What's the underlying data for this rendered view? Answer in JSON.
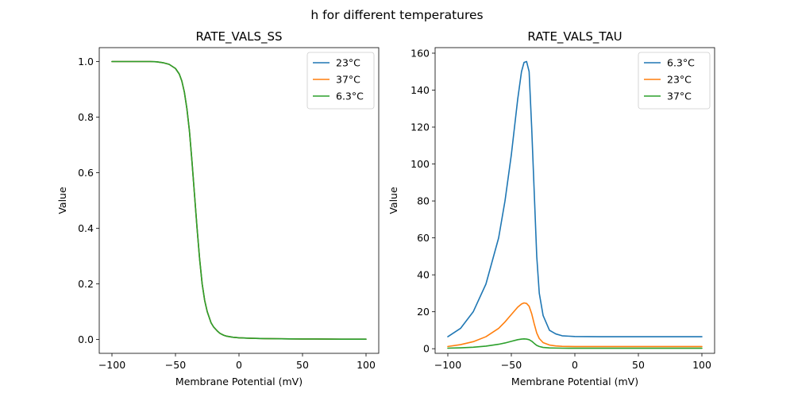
{
  "figure": {
    "title": "h for different temperatures"
  },
  "chart_data": [
    {
      "type": "line",
      "title": "RATE_VALS_SS",
      "xlabel": "Membrane Potential (mV)",
      "ylabel": "Value",
      "xlim": [
        -110,
        110
      ],
      "ylim": [
        -0.05,
        1.05
      ],
      "xticks": [
        -100,
        -50,
        0,
        50,
        100
      ],
      "xtick_labels": [
        "−100",
        "−50",
        "0",
        "50",
        "100"
      ],
      "yticks": [
        0.0,
        0.2,
        0.4,
        0.6,
        0.8,
        1.0
      ],
      "ytick_labels": [
        "0.0",
        "0.2",
        "0.4",
        "0.6",
        "0.8",
        "1.0"
      ],
      "grid": false,
      "legend_position": "top-right",
      "x": [
        -100,
        -80,
        -70,
        -65,
        -60,
        -55,
        -50,
        -47,
        -45,
        -43,
        -41,
        -39,
        -37,
        -35,
        -33,
        -31,
        -29,
        -27,
        -25,
        -22,
        -20,
        -17,
        -15,
        -12,
        -10,
        -5,
        0,
        10,
        20,
        40,
        60,
        80,
        100
      ],
      "series": [
        {
          "name": "23°C",
          "color": "#1f77b4",
          "values": [
            1.0,
            1.0,
            1.0,
            0.999,
            0.996,
            0.99,
            0.975,
            0.955,
            0.93,
            0.89,
            0.83,
            0.75,
            0.64,
            0.52,
            0.4,
            0.29,
            0.2,
            0.14,
            0.1,
            0.06,
            0.045,
            0.03,
            0.022,
            0.015,
            0.012,
            0.008,
            0.006,
            0.004,
            0.003,
            0.002,
            0.0015,
            0.001,
            0.001
          ]
        },
        {
          "name": "37°C",
          "color": "#ff7f0e",
          "values": [
            1.0,
            1.0,
            1.0,
            0.999,
            0.996,
            0.99,
            0.975,
            0.955,
            0.93,
            0.89,
            0.83,
            0.75,
            0.64,
            0.52,
            0.4,
            0.29,
            0.2,
            0.14,
            0.1,
            0.06,
            0.045,
            0.03,
            0.022,
            0.015,
            0.012,
            0.008,
            0.006,
            0.004,
            0.003,
            0.002,
            0.0015,
            0.001,
            0.001
          ]
        },
        {
          "name": "6.3°C",
          "color": "#2ca02c",
          "values": [
            1.0,
            1.0,
            1.0,
            0.999,
            0.996,
            0.99,
            0.975,
            0.955,
            0.93,
            0.89,
            0.83,
            0.75,
            0.64,
            0.52,
            0.4,
            0.29,
            0.2,
            0.14,
            0.1,
            0.06,
            0.045,
            0.03,
            0.022,
            0.015,
            0.012,
            0.008,
            0.006,
            0.004,
            0.003,
            0.002,
            0.0015,
            0.001,
            0.001
          ]
        }
      ]
    },
    {
      "type": "line",
      "title": "RATE_VALS_TAU",
      "xlabel": "Membrane Potential (mV)",
      "ylabel": "Value",
      "xlim": [
        -110,
        110
      ],
      "ylim": [
        -2.5,
        163
      ],
      "xticks": [
        -100,
        -50,
        0,
        50,
        100
      ],
      "xtick_labels": [
        "−100",
        "−50",
        "0",
        "50",
        "100"
      ],
      "yticks": [
        0,
        20,
        40,
        60,
        80,
        100,
        120,
        140,
        160
      ],
      "ytick_labels": [
        "0",
        "20",
        "40",
        "60",
        "80",
        "100",
        "120",
        "140",
        "160"
      ],
      "grid": false,
      "legend_position": "top-right",
      "x": [
        -100,
        -90,
        -80,
        -70,
        -60,
        -55,
        -50,
        -45,
        -42,
        -40,
        -38,
        -36,
        -34,
        -32,
        -30,
        -28,
        -25,
        -20,
        -15,
        -10,
        -5,
        0,
        20,
        50,
        100
      ],
      "series": [
        {
          "name": "6.3°C",
          "color": "#1f77b4",
          "values": [
            6.5,
            11,
            20,
            35,
            60,
            80,
            105,
            135,
            150,
            155,
            155.5,
            150,
            120,
            85,
            50,
            30,
            18,
            10,
            8,
            7,
            6.8,
            6.6,
            6.5,
            6.5,
            6.5
          ]
        },
        {
          "name": "23°C",
          "color": "#ff7f0e",
          "values": [
            1.2,
            2.2,
            3.8,
            6.5,
            11,
            14.5,
            18.5,
            22.5,
            24.2,
            24.8,
            24.5,
            23,
            19,
            13.5,
            8.5,
            5.5,
            3.3,
            2,
            1.5,
            1.3,
            1.25,
            1.2,
            1.2,
            1.2,
            1.2
          ]
        },
        {
          "name": "37°C",
          "color": "#2ca02c",
          "values": [
            0.3,
            0.5,
            0.8,
            1.4,
            2.4,
            3.1,
            4,
            4.9,
            5.2,
            5.3,
            5.2,
            4.9,
            4.1,
            2.9,
            1.8,
            1.2,
            0.7,
            0.45,
            0.35,
            0.3,
            0.28,
            0.27,
            0.27,
            0.27,
            0.27
          ]
        }
      ]
    }
  ]
}
